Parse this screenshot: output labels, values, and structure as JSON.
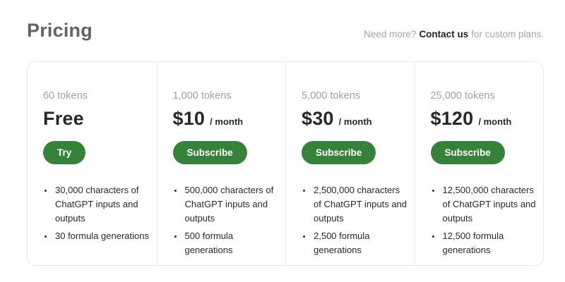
{
  "page": {
    "title": "Pricing",
    "subtitle_prefix": "Need more?",
    "subtitle_link": "Contact us",
    "subtitle_suffix": "for custom plans."
  },
  "colors": {
    "accent_green": "#35823b",
    "card_border": "#e8e8e8",
    "text_dark": "#26282a",
    "text_gray": "#9ea2a6"
  },
  "plans": [
    {
      "tokens": "60 tokens",
      "price": "Free",
      "period": "",
      "button": "Try",
      "features": [
        "30,000 characters of ChatGPT inputs and outputs",
        "30 formula generations"
      ]
    },
    {
      "tokens": "1,000 tokens",
      "price": "$10",
      "period": "/ month",
      "button": "Subscribe",
      "features": [
        "500,000 characters of ChatGPT inputs and outputs",
        "500 formula generations"
      ]
    },
    {
      "tokens": "5,000 tokens",
      "price": "$30",
      "period": "/ month",
      "button": "Subscribe",
      "features": [
        "2,500,000 characters of ChatGPT inputs and outputs",
        "2,500 formula generations"
      ]
    },
    {
      "tokens": "25,000 tokens",
      "price": "$120",
      "period": "/ month",
      "button": "Subscribe",
      "features": [
        "12,500,000 characters of ChatGPT inputs and outputs",
        "12,500 formula generations"
      ]
    }
  ]
}
